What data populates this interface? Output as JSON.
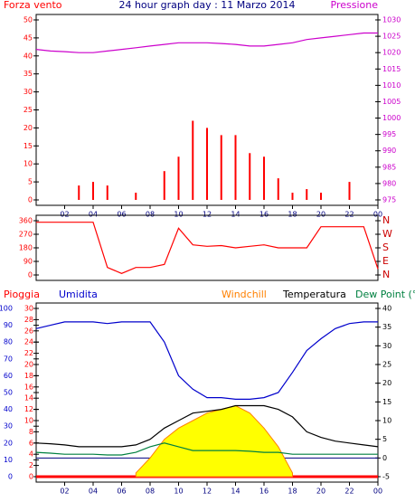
{
  "chart_data": [
    {
      "type": "bar",
      "title": "24 hour graph day : 11 Marzo 2014",
      "x": [
        0,
        1,
        2,
        3,
        4,
        5,
        6,
        7,
        8,
        9,
        10,
        11,
        12,
        13,
        14,
        15,
        16,
        17,
        18,
        19,
        20,
        21,
        22,
        23,
        24
      ],
      "xlim": [
        0,
        24
      ],
      "xticks": [
        {
          "value": 2,
          "label": "02"
        },
        {
          "value": 4,
          "label": "04"
        },
        {
          "value": 6,
          "label": "06"
        },
        {
          "value": 8,
          "label": "08"
        },
        10,
        12,
        14,
        16,
        18,
        20,
        22,
        {
          "value": 24,
          "label": "00"
        }
      ],
      "ylim": [
        0,
        50
      ],
      "yticks": [
        0,
        5,
        10,
        15,
        20,
        25,
        30,
        35,
        40,
        45,
        50
      ],
      "y2lim": [
        975,
        1030
      ],
      "y2ticks": [
        975,
        980,
        985,
        990,
        995,
        1000,
        1005,
        1010,
        1015,
        1020,
        1025,
        1030
      ],
      "series": [
        {
          "name": "Forza vento",
          "type": "bar",
          "color": "#ff0000",
          "values": [
            0,
            0,
            0,
            4,
            5,
            4,
            0,
            2,
            0,
            8,
            12,
            22,
            20,
            18,
            18,
            13,
            12,
            6,
            2,
            3,
            2,
            0,
            5,
            0,
            0
          ]
        },
        {
          "name": "Pressione",
          "type": "line",
          "axis": "y2",
          "color": "#cc00cc",
          "values": [
            1021,
            1020.5,
            1020.3,
            1020,
            1020,
            1020.5,
            1021,
            1021.5,
            1022,
            1022.5,
            1023,
            1023,
            1023,
            1022.8,
            1022.5,
            1022,
            1022,
            1022.5,
            1023,
            1024,
            1024.5,
            1025,
            1025.5,
            1026,
            1026
          ]
        }
      ]
    },
    {
      "type": "line",
      "x": [
        0,
        1,
        2,
        3,
        4,
        5,
        6,
        7,
        8,
        9,
        10,
        11,
        12,
        13,
        14,
        15,
        16,
        17,
        18,
        19,
        20,
        21,
        22,
        23,
        24
      ],
      "xlim": [
        0,
        24
      ],
      "ylim": [
        0,
        360
      ],
      "yticks": [
        0,
        90,
        180,
        270,
        360
      ],
      "y2lim": [
        0,
        360
      ],
      "y2ticks": [
        {
          "value": 0,
          "label": "N"
        },
        {
          "value": 90,
          "label": "E"
        },
        {
          "value": 180,
          "label": "S"
        },
        {
          "value": 270,
          "label": "W"
        },
        {
          "value": 360,
          "label": "N"
        }
      ],
      "series": [
        {
          "type": "line",
          "color": "#ff0000",
          "values": [
            350,
            350,
            350,
            350,
            350,
            50,
            10,
            50,
            50,
            70,
            310,
            200,
            190,
            195,
            180,
            190,
            200,
            180,
            180,
            180,
            320,
            320,
            320,
            320,
            40
          ]
        }
      ]
    },
    {
      "type": "line",
      "x": [
        0,
        1,
        2,
        3,
        4,
        5,
        6,
        7,
        8,
        9,
        10,
        11,
        12,
        13,
        14,
        15,
        16,
        17,
        18,
        19,
        20,
        21,
        22,
        23,
        24
      ],
      "xlim": [
        0,
        24
      ],
      "xticks": [
        {
          "value": 2,
          "label": "02"
        },
        {
          "value": 4,
          "label": "04"
        },
        {
          "value": 6,
          "label": "06"
        },
        {
          "value": 8,
          "label": "08"
        },
        10,
        12,
        14,
        16,
        18,
        20,
        22,
        {
          "value": 24,
          "label": "00"
        }
      ],
      "ylim": [
        0,
        100
      ],
      "yticks": [
        0,
        10,
        20,
        30,
        40,
        50,
        60,
        70,
        80,
        90,
        100
      ],
      "y2lim": [
        -5,
        40
      ],
      "y2ticks": [
        -5,
        0,
        5,
        10,
        15,
        20,
        25,
        30,
        35,
        40
      ],
      "y3lim": [
        0,
        30
      ],
      "y3ticks": [
        0,
        2,
        4,
        6,
        8,
        10,
        12,
        14,
        16,
        18,
        20,
        22,
        24,
        26,
        28,
        30
      ],
      "series": [
        {
          "name": "Pioggia",
          "type": "line",
          "axis": "y3",
          "color": "#ff0000",
          "values": [
            0,
            0,
            0,
            0,
            0,
            0,
            0,
            0,
            0,
            0,
            0,
            0,
            0,
            0,
            0,
            0,
            0,
            0,
            0,
            0,
            0,
            0,
            0,
            0,
            0
          ]
        },
        {
          "name": "Umidita",
          "type": "line",
          "axis": "y",
          "color": "#0000cc",
          "values": [
            88,
            90,
            92,
            92,
            92,
            91,
            92,
            92,
            92,
            80,
            60,
            52,
            47,
            47,
            46,
            46,
            47,
            50,
            62,
            75,
            82,
            88,
            91,
            92,
            92
          ]
        },
        {
          "name": "Windchill",
          "type": "area",
          "axis": "y2",
          "color": "#ff8000",
          "fill": "#ffff00",
          "values": [
            null,
            null,
            null,
            null,
            null,
            null,
            null,
            -4,
            0,
            5,
            8,
            10,
            12,
            13,
            14,
            12,
            8,
            3,
            -4,
            null,
            null,
            null,
            null,
            null,
            null
          ]
        },
        {
          "name": "Temperatura",
          "type": "line",
          "axis": "y2",
          "color": "#000000",
          "values": [
            4,
            3.8,
            3.5,
            3,
            3,
            3,
            3,
            3.5,
            5,
            8,
            10,
            12,
            12.5,
            13,
            14,
            14,
            14,
            13,
            11,
            7,
            5.5,
            4.5,
            4,
            3.5,
            3
          ]
        },
        {
          "name": "Dew Point (°C",
          "type": "line",
          "axis": "y2",
          "color": "#008040",
          "values": [
            1.5,
            1.3,
            1,
            1,
            1,
            0.8,
            0.8,
            1.5,
            3,
            4,
            3,
            2,
            2,
            2,
            2,
            1.8,
            1.5,
            1.5,
            1,
            1,
            1,
            1,
            1,
            1,
            1
          ]
        }
      ]
    }
  ]
}
